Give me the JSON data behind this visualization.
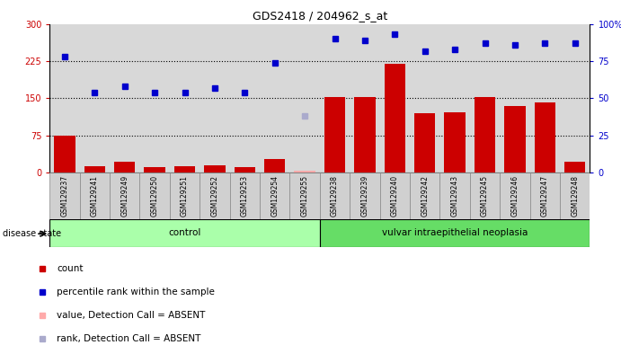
{
  "title": "GDS2418 / 204962_s_at",
  "samples": [
    "GSM129237",
    "GSM129241",
    "GSM129249",
    "GSM129250",
    "GSM129251",
    "GSM129252",
    "GSM129253",
    "GSM129254",
    "GSM129255",
    "GSM129238",
    "GSM129239",
    "GSM129240",
    "GSM129242",
    "GSM129243",
    "GSM129245",
    "GSM129246",
    "GSM129247",
    "GSM129248"
  ],
  "bar_values": [
    75,
    12,
    22,
    10,
    12,
    14,
    11,
    28,
    null,
    152,
    152,
    220,
    120,
    122,
    152,
    135,
    142,
    22
  ],
  "bar_absent_values": [
    null,
    null,
    null,
    null,
    null,
    null,
    null,
    null,
    4,
    null,
    null,
    null,
    null,
    null,
    null,
    null,
    null,
    null
  ],
  "blue_pct_values": [
    78,
    54,
    58,
    54,
    54,
    57,
    54,
    74,
    null,
    90,
    89,
    93,
    82,
    83,
    87,
    86,
    87,
    87
  ],
  "blue_absent_pct_values": [
    null,
    null,
    null,
    null,
    null,
    null,
    null,
    null,
    38,
    null,
    null,
    null,
    null,
    null,
    null,
    null,
    null,
    null
  ],
  "control_count": 9,
  "disease_count": 9,
  "control_label": "control",
  "disease_label": "vulvar intraepithelial neoplasia",
  "disease_state_label": "disease state",
  "legend_items": [
    {
      "label": "count",
      "color": "#cc0000"
    },
    {
      "label": "percentile rank within the sample",
      "color": "#0000cc"
    },
    {
      "label": "value, Detection Call = ABSENT",
      "color": "#ffaaaa"
    },
    {
      "label": "rank, Detection Call = ABSENT",
      "color": "#aaaacc"
    }
  ],
  "ylim_left": [
    0,
    300
  ],
  "ylim_right": [
    0,
    100
  ],
  "yticks_left": [
    0,
    75,
    150,
    225,
    300
  ],
  "yticks_right": [
    0,
    25,
    50,
    75,
    100
  ],
  "bar_color": "#cc0000",
  "absent_bar_color": "#ffaaaa",
  "blue_color": "#0000cc",
  "blue_absent_color": "#aaaacc",
  "bg_color": "#ffffff",
  "plot_bg_color": "#d8d8d8",
  "control_bg": "#aaffaa",
  "disease_bg": "#66dd66",
  "grid_color": "#000000",
  "title_color": "#000000"
}
